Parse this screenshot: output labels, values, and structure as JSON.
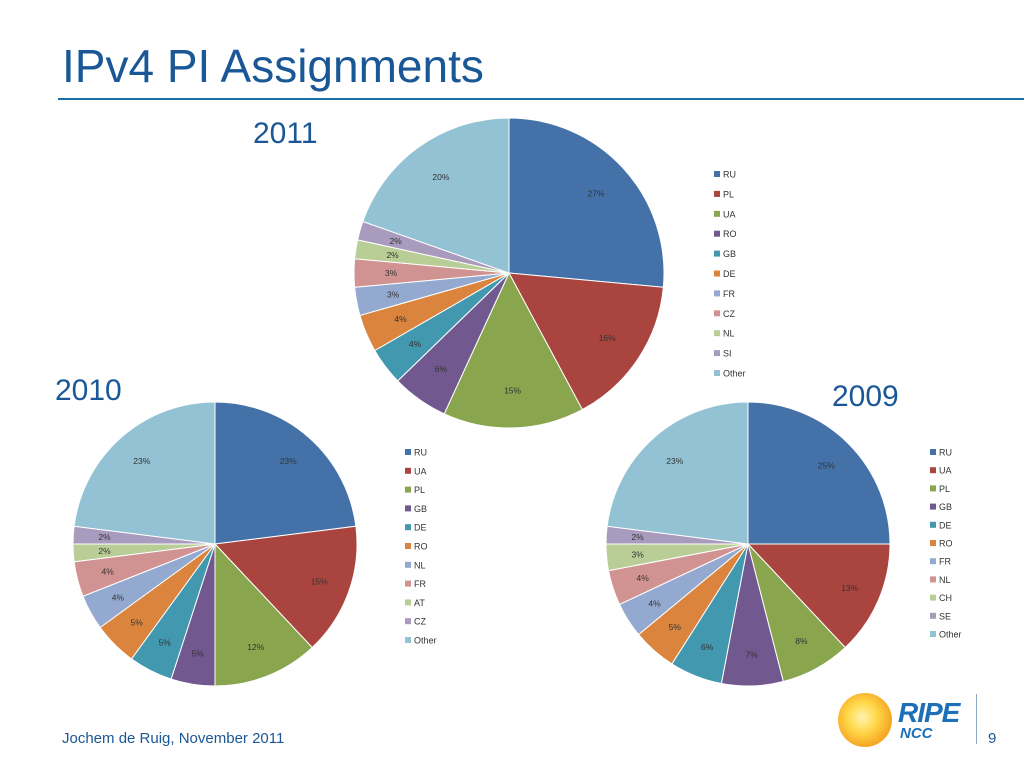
{
  "slide": {
    "title": "IPv4 PI Assignments",
    "footer": "Jochem de Ruig, November 2011",
    "page_number": "9",
    "logo": {
      "line1": "RIPE",
      "line2": "NCC"
    }
  },
  "colors": {
    "title": "#1a5796",
    "palette": [
      "#4472a8",
      "#a9443f",
      "#89a54e",
      "#71588f",
      "#4198af",
      "#db843d",
      "#93a9cf",
      "#d19392",
      "#b9cd96",
      "#a99bbd",
      "#92c2d4"
    ]
  },
  "chart_data": [
    {
      "type": "pie",
      "title": "2011",
      "categories": [
        "RU",
        "PL",
        "UA",
        "RO",
        "GB",
        "DE",
        "FR",
        "CZ",
        "NL",
        "SI",
        "Other"
      ],
      "values": [
        27,
        16,
        15,
        6,
        4,
        4,
        3,
        3,
        2,
        2,
        20
      ],
      "labels": [
        "27%",
        "16%",
        "15%",
        "6%",
        "4%",
        "4%",
        "3%",
        "3%",
        "2%",
        "2%",
        "20%"
      ],
      "legend": "right"
    },
    {
      "type": "pie",
      "title": "2010",
      "categories": [
        "RU",
        "UA",
        "PL",
        "GB",
        "DE",
        "RO",
        "NL",
        "FR",
        "AT",
        "CZ",
        "Other"
      ],
      "values": [
        23,
        15,
        12,
        5,
        5,
        5,
        4,
        4,
        2,
        2,
        23
      ],
      "labels": [
        "23%",
        "15%",
        "12%",
        "5%",
        "5%",
        "5%",
        "4%",
        "4%",
        "2%",
        "2%",
        "23%"
      ],
      "legend": "right"
    },
    {
      "type": "pie",
      "title": "2009",
      "categories": [
        "RU",
        "UA",
        "PL",
        "GB",
        "DE",
        "RO",
        "FR",
        "NL",
        "CH",
        "SE",
        "Other"
      ],
      "values": [
        25,
        13,
        8,
        7,
        6,
        5,
        4,
        4,
        3,
        2,
        23
      ],
      "labels": [
        "25%",
        "13%",
        "8%",
        "7%",
        "6%",
        "5%",
        "4%",
        "4%",
        "3%",
        "2%",
        "23%"
      ],
      "legend": "right"
    }
  ]
}
